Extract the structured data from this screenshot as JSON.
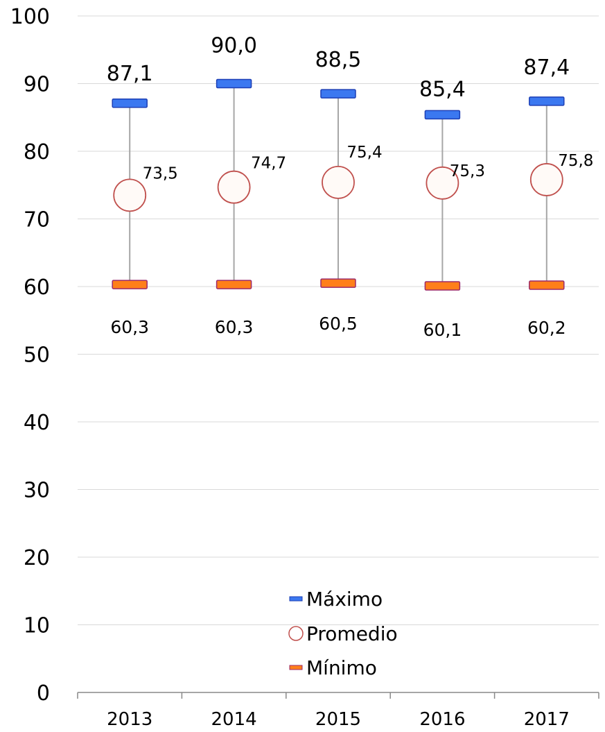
{
  "chart_data": {
    "type": "scatter",
    "title": "",
    "xlabel": "",
    "ylabel": "",
    "ylim": [
      0,
      100
    ],
    "yticks": [
      "0",
      "10",
      "20",
      "30",
      "40",
      "50",
      "60",
      "70",
      "80",
      "90",
      "100"
    ],
    "categories": [
      "2013",
      "2014",
      "2015",
      "2016",
      "2017"
    ],
    "grid": "horizontal",
    "legend_position": "inside-bottom-center",
    "series": [
      {
        "name": "Máximo",
        "marker": "dash",
        "color": "#1a56e8",
        "values": [
          87.1,
          90.0,
          88.5,
          85.4,
          87.4
        ],
        "labels": [
          "87,1",
          "90,0",
          "88,5",
          "85,4",
          "87,4"
        ]
      },
      {
        "name": "Promedio",
        "marker": "circle",
        "color": "#c0504d",
        "values": [
          73.5,
          74.7,
          75.4,
          75.3,
          75.8
        ],
        "labels": [
          "73,5",
          "74,7",
          "75,4",
          "75,3",
          "75,8"
        ]
      },
      {
        "name": "Mínimo",
        "marker": "dash",
        "color": "#f26c0e",
        "values": [
          60.3,
          60.3,
          60.5,
          60.1,
          60.2
        ],
        "labels": [
          "60,3",
          "60,3",
          "60,5",
          "60,1",
          "60,2"
        ]
      }
    ]
  }
}
